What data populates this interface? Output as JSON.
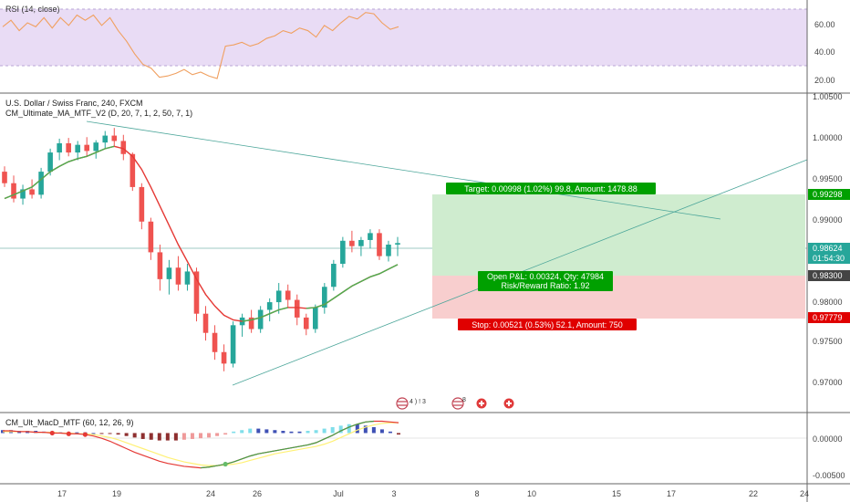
{
  "rsi_panel": {
    "label": "RSI (14, close)",
    "ticks": [
      "60.00",
      "40.00",
      "20.00"
    ],
    "band_color": "#e9dcf5"
  },
  "price_panel": {
    "label": "U.S. Dollar / Swiss Franc, 240, FXCM",
    "indicator_label": "CM_Ultimate_MA_MTF_V2 (D, 20, 7, 1, 2, 50, 7, 1)",
    "ticks": [
      "1.00500",
      "1.00000",
      "0.99500",
      "0.99000",
      "0.98500",
      "0.98000",
      "0.97500",
      "0.97000"
    ],
    "price_badges": {
      "target": "0.99298",
      "current": "0.98624",
      "countdown": "01:54:30",
      "entry": "0.98300",
      "stop": "0.97779"
    },
    "position": {
      "target_text": "Target: 0.00998 (1.02%) 99.8, Amount: 1478.88",
      "open_pl_text": "Open P&L: 0.00324, Qty: 47984",
      "rr_text": "Risk/Reward Ratio: 1.92",
      "stop_text": "Stop: 0.00521 (0.53%) 52.1, Amount: 750"
    },
    "event_markers": [
      {
        "text": "4 ) ! 3",
        "icon": "us-flag-icon"
      },
      {
        "text": "8",
        "icon": "us-flag-icon"
      },
      {
        "icon": "swiss-flag-icon"
      },
      {
        "icon": "swiss-flag-icon"
      }
    ]
  },
  "macd_panel": {
    "label": "CM_Ult_MacD_MTF (60, 12, 26, 9)",
    "ticks": [
      "0.00000",
      "-0.00500"
    ]
  },
  "x_axis": {
    "ticks": [
      "17",
      "19",
      "24",
      "26",
      "Jul",
      "3",
      "8",
      "10",
      "15",
      "17",
      "22",
      "24"
    ]
  },
  "colors": {
    "up": "#26a69a",
    "down": "#ef5350",
    "ma": "#e53935",
    "ma_green": "#4caf50",
    "target_fill": "#cfeccf",
    "stop_fill": "#f8cece",
    "target_label": "#00a000",
    "stop_label": "#e00000"
  },
  "chart_data": [
    {
      "type": "line",
      "title": "RSI (14, close)",
      "ylim": [
        10,
        72
      ],
      "grid": false,
      "series": [
        {
          "values": [
            57,
            62,
            54,
            60,
            57,
            64,
            56,
            64,
            58,
            66,
            62,
            66,
            58,
            64,
            54,
            46,
            36,
            28,
            25,
            18,
            19,
            21,
            24,
            20,
            22,
            19,
            17,
            42,
            43,
            45,
            42,
            44,
            48,
            50,
            54,
            52,
            56,
            54,
            49,
            58,
            54,
            60,
            65,
            63,
            68,
            67,
            60,
            55,
            57
          ]
        }
      ]
    },
    {
      "type": "candlestick",
      "title": "U.S. Dollar / Swiss Franc, 240, FXCM",
      "ylim": [
        0.9665,
        1.0055
      ],
      "x_ticks": [
        "17",
        "19",
        "24",
        "26",
        "Jul",
        "3",
        "8",
        "10",
        "15",
        "17",
        "22",
        "24"
      ],
      "ohlc": [
        [
          0.9955,
          0.9962,
          0.9935,
          0.994
        ],
        [
          0.994,
          0.995,
          0.9915,
          0.992
        ],
        [
          0.992,
          0.9938,
          0.9912,
          0.9932
        ],
        [
          0.9932,
          0.9945,
          0.992,
          0.9925
        ],
        [
          0.9925,
          0.996,
          0.992,
          0.9955
        ],
        [
          0.9955,
          0.9985,
          0.995,
          0.998
        ],
        [
          0.998,
          0.9998,
          0.997,
          0.9992
        ],
        [
          0.9992,
          0.9999,
          0.9975,
          0.998
        ],
        [
          0.998,
          0.9995,
          0.997,
          0.999
        ],
        [
          0.999,
          1.0,
          0.9975,
          0.9982
        ],
        [
          0.9982,
          0.9996,
          0.9972,
          0.9993
        ],
        [
          0.9993,
          1.0008,
          0.9985,
          1.0002
        ],
        [
          1.0002,
          1.0012,
          0.9988,
          0.9995
        ],
        [
          0.9995,
          1.0003,
          0.997,
          0.9978
        ],
        [
          0.9978,
          0.998,
          0.993,
          0.9935
        ],
        [
          0.9935,
          0.994,
          0.988,
          0.989
        ],
        [
          0.989,
          0.9895,
          0.984,
          0.985
        ],
        [
          0.985,
          0.986,
          0.98,
          0.9815
        ],
        [
          0.9815,
          0.984,
          0.9795,
          0.983
        ],
        [
          0.983,
          0.9845,
          0.98,
          0.9808
        ],
        [
          0.9808,
          0.9835,
          0.98,
          0.9825
        ],
        [
          0.9825,
          0.983,
          0.976,
          0.977
        ],
        [
          0.977,
          0.978,
          0.9735,
          0.9745
        ],
        [
          0.9745,
          0.9755,
          0.971,
          0.972
        ],
        [
          0.972,
          0.973,
          0.9695,
          0.9705
        ],
        [
          0.9705,
          0.976,
          0.97,
          0.9755
        ],
        [
          0.9755,
          0.977,
          0.974,
          0.9765
        ],
        [
          0.9765,
          0.9775,
          0.9745,
          0.975
        ],
        [
          0.975,
          0.978,
          0.9745,
          0.9775
        ],
        [
          0.9775,
          0.979,
          0.976,
          0.9785
        ],
        [
          0.9785,
          0.981,
          0.977,
          0.98
        ],
        [
          0.98,
          0.9808,
          0.9778,
          0.9788
        ],
        [
          0.9788,
          0.9795,
          0.9755,
          0.9765
        ],
        [
          0.9765,
          0.977,
          0.9742,
          0.975
        ],
        [
          0.975,
          0.9782,
          0.9745,
          0.9778
        ],
        [
          0.9778,
          0.981,
          0.977,
          0.9805
        ],
        [
          0.9805,
          0.984,
          0.98,
          0.9835
        ],
        [
          0.9835,
          0.987,
          0.983,
          0.9865
        ],
        [
          0.9865,
          0.9878,
          0.985,
          0.9858
        ],
        [
          0.9858,
          0.987,
          0.9845,
          0.9866
        ],
        [
          0.9866,
          0.988,
          0.9855,
          0.9875
        ],
        [
          0.9875,
          0.988,
          0.984,
          0.9845
        ],
        [
          0.9845,
          0.9865,
          0.9838,
          0.986
        ],
        [
          0.986,
          0.987,
          0.9845,
          0.9862
        ]
      ],
      "series": [
        {
          "values": [
            0.992,
            0.9925,
            0.993,
            0.9935,
            0.9945,
            0.9955,
            0.9962,
            0.9968,
            0.9972,
            0.9975,
            0.998,
            0.9985,
            0.9988,
            0.9985,
            0.9975,
            0.9958,
            0.9935,
            0.991,
            0.9885,
            0.986,
            0.9838,
            0.9815,
            0.9795,
            0.978,
            0.9768,
            0.9762,
            0.976,
            0.9762,
            0.9765,
            0.977,
            0.9775,
            0.9778,
            0.9778,
            0.9777,
            0.9778,
            0.9782,
            0.979,
            0.9798,
            0.9806,
            0.9812,
            0.9818,
            0.9822,
            0.9828,
            0.9834
          ]
        }
      ]
    },
    {
      "type": "bar",
      "title": "CM_Ult_MacD_MTF (60, 12, 26, 9)",
      "ylim": [
        -0.0066,
        0.0024
      ],
      "series": [
        {
          "values": [
            0.0004,
            0.0004,
            0.0003,
            0.0003,
            0.0003,
            0.0002,
            0.0002,
            0.0001,
            0.0001,
            0.0001,
            0.0001,
            0.0,
            -0.0001,
            -0.0001,
            -0.0002,
            -0.0004,
            -0.0006,
            -0.0008,
            -0.0009,
            -0.001,
            -0.001,
            -0.001,
            -0.0009,
            -0.0008,
            -0.0007,
            -0.0006,
            -0.0004,
            -0.0002,
            0.0002,
            0.0004,
            0.0006,
            0.0006,
            0.0005,
            0.0004,
            0.0003,
            0.0002,
            0.0002,
            0.0003,
            0.0004,
            0.0006,
            0.0008,
            0.001,
            0.0012,
            0.0012,
            0.001,
            0.0008,
            0.0005,
            0.0002,
            -0.0002
          ]
        },
        {
          "values": [
            0.0003,
            0.0003,
            0.0002,
            0.0002,
            0.0001,
            0.0001,
            0.0,
            0.0,
            -0.0001,
            -0.0001,
            -0.0002,
            -0.0004,
            -0.0007,
            -0.0011,
            -0.0016,
            -0.0021,
            -0.0026,
            -0.003,
            -0.0034,
            -0.0038,
            -0.0041,
            -0.0043,
            -0.0045,
            -0.0046,
            -0.0047,
            -0.0046,
            -0.0044,
            -0.0042,
            -0.0039,
            -0.0035,
            -0.0031,
            -0.0028,
            -0.0026,
            -0.0024,
            -0.0022,
            -0.002,
            -0.0018,
            -0.0016,
            -0.0013,
            -0.0008,
            -0.0003,
            0.0003,
            0.0008,
            0.0012,
            0.0015,
            0.0016,
            0.0016,
            0.0015,
            0.0014
          ]
        },
        {
          "values": [
            0.0002,
            0.0002,
            0.0002,
            0.0002,
            0.0001,
            0.0001,
            0.0001,
            0.0,
            0.0,
            -0.0001,
            -0.0001,
            -0.0002,
            -0.0004,
            -0.0006,
            -0.0009,
            -0.0013,
            -0.0017,
            -0.0021,
            -0.0025,
            -0.0029,
            -0.0033,
            -0.0036,
            -0.0039,
            -0.0041,
            -0.0043,
            -0.0044,
            -0.0044,
            -0.0043,
            -0.0042,
            -0.004,
            -0.0037,
            -0.0034,
            -0.0031,
            -0.0028,
            -0.0026,
            -0.0024,
            -0.0022,
            -0.002,
            -0.0018,
            -0.0015,
            -0.0011,
            -0.0006,
            -0.0001,
            0.0004,
            0.0008,
            0.0011,
            0.0013,
            0.0014,
            0.0014
          ]
        }
      ]
    }
  ]
}
